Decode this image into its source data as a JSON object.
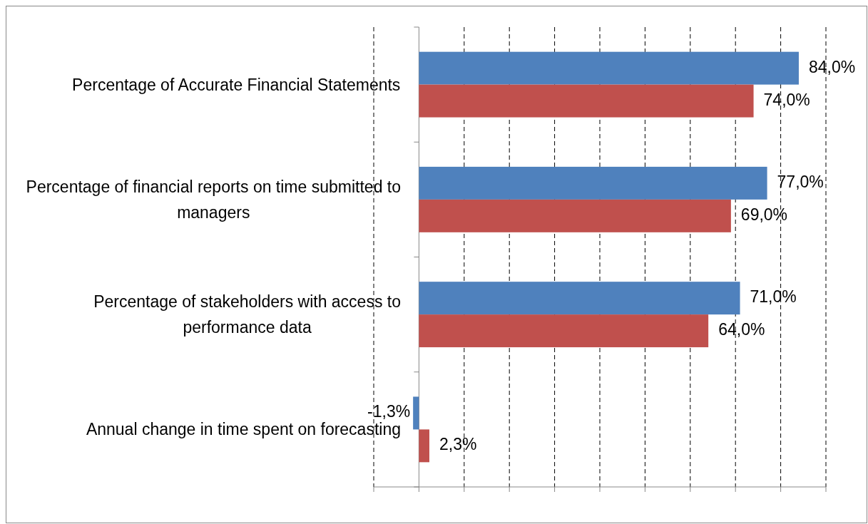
{
  "chart_data": {
    "type": "bar",
    "orientation": "horizontal",
    "categories": [
      "Percentage of Accurate Financial Statements",
      "Percentage of financial reports on time submitted to managers",
      "Percentage of stakeholders with access to performance data",
      "Annual change in time spent on forecasting"
    ],
    "series": [
      {
        "color": "#4f81bd",
        "values": [
          84,
          77,
          71,
          -1.3
        ],
        "value_labels": [
          "84,0%",
          "77,0%",
          "71,0%",
          "-1,3%"
        ]
      },
      {
        "color": "#c0504d",
        "values": [
          74,
          69,
          64,
          2.3
        ],
        "value_labels": [
          "74,0%",
          "69,0%",
          "64,0%",
          "2,3%"
        ]
      }
    ],
    "xlim": [
      -10,
      90
    ],
    "xticks": [
      {
        "value": -10,
        "label": null
      },
      {
        "value": 0,
        "label": null
      },
      {
        "value": 10,
        "label": null
      },
      {
        "value": 20,
        "label": null
      },
      {
        "value": 30,
        "label": null
      },
      {
        "value": 40,
        "label": null
      },
      {
        "value": 50,
        "label": null
      },
      {
        "value": 60,
        "label": null
      },
      {
        "value": 70,
        "label": null
      },
      {
        "value": 80,
        "label": null
      },
      {
        "value": 90,
        "label": null
      }
    ],
    "grid": "x",
    "tick_labels": "y"
  }
}
